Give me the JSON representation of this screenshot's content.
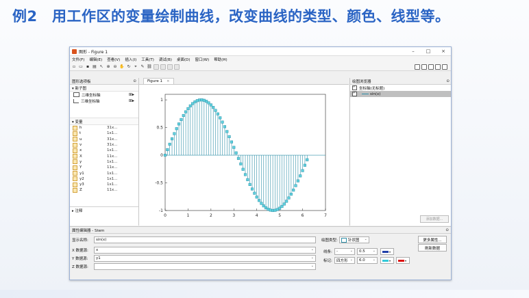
{
  "slide": {
    "number": "例2",
    "title": "用工作区的变量绘制曲线，改变曲线的类型、颜色、线型等。"
  },
  "window": {
    "title": "图形 - Figure 1",
    "controls": [
      "–",
      "□",
      "×"
    ],
    "menus": [
      "文件(F)",
      "编辑(E)",
      "查看(V)",
      "插入(I)",
      "工具(T)",
      "调试(B)",
      "桌面(D)",
      "窗口(W)",
      "帮助(H)"
    ],
    "menu_right": "↘ ↗ ×"
  },
  "left_panel": {
    "title": "图形选项板",
    "new_subplot_label": "▾ 新子图",
    "subplots": [
      {
        "label": "二维坐标轴",
        "add": "⊞▸"
      },
      {
        "label": "三维坐标轴",
        "add": "⊞▸"
      }
    ],
    "vars_label": "▾ 变量",
    "variables": [
      {
        "name": "h",
        "size": "31x..."
      },
      {
        "name": "t",
        "size": "1x1..."
      },
      {
        "name": "u",
        "size": "31x..."
      },
      {
        "name": "v",
        "size": "31x..."
      },
      {
        "name": "x",
        "size": "1x1..."
      },
      {
        "name": "X",
        "size": "11x..."
      },
      {
        "name": "y",
        "size": "1x1..."
      },
      {
        "name": "Y",
        "size": "11x..."
      },
      {
        "name": "y1",
        "size": "1x1..."
      },
      {
        "name": "y2",
        "size": "1x1..."
      },
      {
        "name": "y3",
        "size": "1x1..."
      },
      {
        "name": "Z",
        "size": "11x..."
      }
    ],
    "annotation_label": "▸ 注释"
  },
  "figure_tab": {
    "label": "Figure 1",
    "close": "×"
  },
  "browser": {
    "title": "绘图浏览器",
    "items": [
      {
        "label": "坐标轴(无标题)"
      },
      {
        "label": "sin(x)"
      }
    ],
    "add_data": "添加数据..."
  },
  "property_editor": {
    "title": "属性编辑器 - Stem",
    "display_name_label": "显示名称:",
    "display_name_value": "sin(x)",
    "plot_type_label": "绘图类型:",
    "plot_type_value": "针状图",
    "more_props": "更多属性...",
    "refresh": "刷新数据",
    "x_source_label": "X 数据源:",
    "x_source_value": "x",
    "y_source_label": "Y 数据源:",
    "y_source_value": "y1",
    "z_source_label": "Z 数据源:",
    "z_source_value": "",
    "line_label": "线条:",
    "line_style": "-",
    "line_width": "0.5",
    "marker_label": "标记:",
    "marker_value": "四方形",
    "marker_size": "6.0",
    "line_color": "#1f3fa8",
    "marker_face_color": "#33c9d8",
    "marker_edge_color": "#d11"
  },
  "chart_data": {
    "type": "stem",
    "series": [
      {
        "values": "sin(x), x = 0 : 0.1 : 2π"
      }
    ],
    "x_ticks": [
      "0",
      "1",
      "2",
      "3",
      "4",
      "5",
      "6",
      "7"
    ],
    "y_ticks": [
      "1",
      "0.5",
      "0",
      "-0.5",
      "-1"
    ],
    "xlim": [
      0,
      7
    ],
    "ylim": [
      -1,
      1.1
    ],
    "color": "#2f8fa8",
    "marker": "square"
  }
}
